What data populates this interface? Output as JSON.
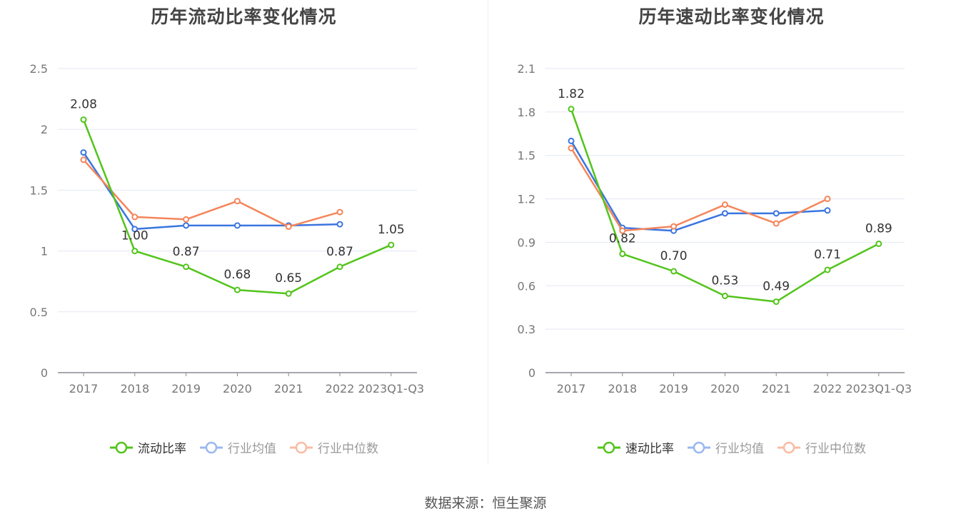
{
  "chart_data": [
    {
      "type": "line",
      "title": "历年流动比率变化情况",
      "categories": [
        "2017",
        "2018",
        "2019",
        "2020",
        "2021",
        "2022",
        "2023Q1-Q3"
      ],
      "ylim": [
        0,
        2.5
      ],
      "yticks": [
        "0",
        "0.5",
        "1",
        "1.5",
        "2",
        "2.5"
      ],
      "ytick_values": [
        0,
        0.5,
        1,
        1.5,
        2,
        2.5
      ],
      "grid": true,
      "legend_position": "bottom",
      "series": [
        {
          "name": "流动比率",
          "color": "#52c41a",
          "legend_color": "#52c41a",
          "values": [
            2.08,
            1.0,
            0.87,
            0.68,
            0.65,
            0.87,
            1.05
          ],
          "labels": [
            "2.08",
            "1.00",
            "0.87",
            "0.68",
            "0.65",
            "0.87",
            "1.05"
          ]
        },
        {
          "name": "行业均值",
          "color": "#3a75e0",
          "legend_color": "#9ab7ef",
          "values": [
            1.81,
            1.18,
            1.21,
            1.21,
            1.21,
            1.22,
            null
          ]
        },
        {
          "name": "行业中位数",
          "color": "#f5855a",
          "legend_color": "#f8bca3",
          "values": [
            1.75,
            1.28,
            1.26,
            1.41,
            1.2,
            1.32,
            null
          ]
        }
      ]
    },
    {
      "type": "line",
      "title": "历年速动比率变化情况",
      "categories": [
        "2017",
        "2018",
        "2019",
        "2020",
        "2021",
        "2022",
        "2023Q1-Q3"
      ],
      "ylim": [
        0,
        2.1
      ],
      "yticks": [
        "0",
        "0.3",
        "0.6",
        "0.9",
        "1.2",
        "1.5",
        "1.8",
        "2.1"
      ],
      "ytick_values": [
        0,
        0.3,
        0.6,
        0.9,
        1.2,
        1.5,
        1.8,
        2.1
      ],
      "grid": true,
      "legend_position": "bottom",
      "series": [
        {
          "name": "速动比率",
          "color": "#52c41a",
          "legend_color": "#52c41a",
          "values": [
            1.82,
            0.82,
            0.7,
            0.53,
            0.49,
            0.71,
            0.89
          ],
          "labels": [
            "1.82",
            "0.82",
            "0.70",
            "0.53",
            "0.49",
            "0.71",
            "0.89"
          ]
        },
        {
          "name": "行业均值",
          "color": "#3a75e0",
          "legend_color": "#9ab7ef",
          "values": [
            1.6,
            1.0,
            0.98,
            1.1,
            1.1,
            1.12,
            null
          ]
        },
        {
          "name": "行业中位数",
          "color": "#f5855a",
          "legend_color": "#f8bca3",
          "values": [
            1.55,
            0.98,
            1.01,
            1.16,
            1.03,
            1.2,
            null
          ]
        }
      ]
    }
  ],
  "footer": {
    "source": "数据来源：恒生聚源"
  }
}
